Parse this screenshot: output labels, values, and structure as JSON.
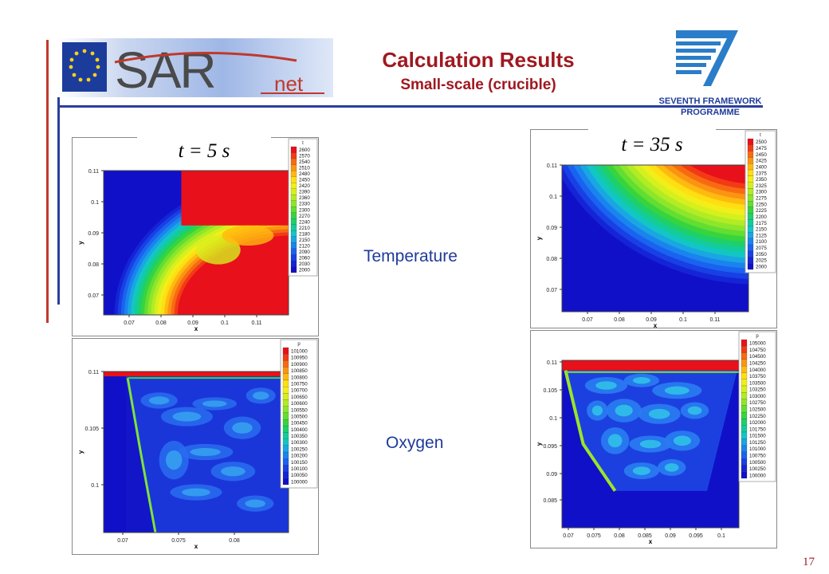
{
  "header": {
    "logo_text": "SARnet",
    "title": "Calculation Results",
    "subtitle": "Small-scale (crucible)",
    "fp7_logo_line1": "SEVENTH FRAMEWORK",
    "fp7_logo_line2": "PROGRAMME"
  },
  "labels": {
    "time_left": "t = 5 s",
    "time_right": "t = 35 s",
    "temperature": "Temperature",
    "oxygen": "Oxygen",
    "page_number": "17"
  },
  "plots": {
    "temp_left": {
      "legend_title": "t",
      "legend": [
        "2600",
        "2570",
        "2540",
        "2510",
        "2480",
        "2450",
        "2420",
        "2390",
        "2360",
        "2330",
        "2300",
        "2270",
        "2240",
        "2210",
        "2180",
        "2150",
        "2120",
        "2090",
        "2060",
        "2030",
        "2000"
      ],
      "x_ticks": [
        "0.07",
        "0.08",
        "0.09",
        "0.1",
        "0.11"
      ],
      "y_ticks": [
        "0.11",
        "0.1",
        "0.09",
        "0.08",
        "0.07"
      ],
      "x_label": "x",
      "y_label": "y"
    },
    "temp_right": {
      "legend_title": "t",
      "legend": [
        "2500",
        "2475",
        "2450",
        "2425",
        "2400",
        "2375",
        "2350",
        "2325",
        "2300",
        "2275",
        "2250",
        "2225",
        "2200",
        "2175",
        "2150",
        "2125",
        "2100",
        "2075",
        "2050",
        "2025",
        "2000"
      ],
      "x_ticks": [
        "0.07",
        "0.08",
        "0.09",
        "0.1",
        "0.11"
      ],
      "y_ticks": [
        "0.11",
        "0.1",
        "0.09",
        "0.08",
        "0.07"
      ],
      "x_label": "x",
      "y_label": "y"
    },
    "oxy_left": {
      "legend_title": "p",
      "legend": [
        "101000",
        "100950",
        "100900",
        "100850",
        "100800",
        "100750",
        "100700",
        "100650",
        "100600",
        "100550",
        "100500",
        "100450",
        "100400",
        "100350",
        "100300",
        "100250",
        "100200",
        "100150",
        "100100",
        "100050",
        "100000"
      ],
      "x_ticks": [
        "0.07",
        "0.075",
        "0.08"
      ],
      "y_ticks": [
        "0.11",
        "0.105",
        "0.1"
      ],
      "x_label": "x",
      "y_label": "y"
    },
    "oxy_right": {
      "legend_title": "p",
      "legend": [
        "105000",
        "104750",
        "104500",
        "104250",
        "104000",
        "103750",
        "103500",
        "103250",
        "103000",
        "102750",
        "102500",
        "102250",
        "102000",
        "101750",
        "101500",
        "101250",
        "101000",
        "100750",
        "100500",
        "100250",
        "100000"
      ],
      "x_ticks": [
        "0.07",
        "0.075",
        "0.08",
        "0.085",
        "0.09",
        "0.095",
        "0.1"
      ],
      "y_ticks": [
        "0.11",
        "0.105",
        "0.1",
        "0.095",
        "0.09",
        "0.085"
      ],
      "x_label": "x",
      "y_label": "y"
    }
  }
}
